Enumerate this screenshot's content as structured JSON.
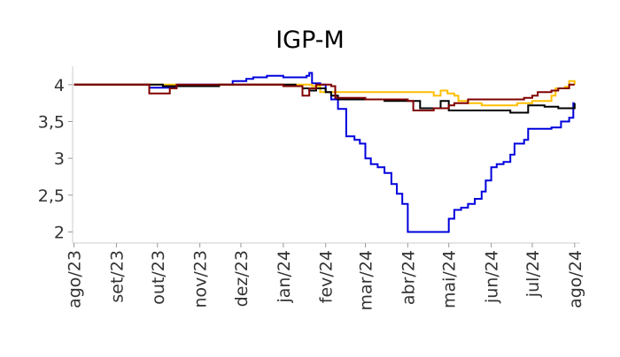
{
  "chart_data": {
    "type": "line",
    "title": "IGP-M",
    "xlabel": "",
    "ylabel": "",
    "ylim": [
      1.85,
      4.25
    ],
    "y_ticks": [
      2,
      2.5,
      3,
      3.5,
      4
    ],
    "y_tick_labels": [
      "2",
      "2,5",
      "3",
      "3,5",
      "4"
    ],
    "x_range": [
      "2023-07-31",
      "2024-08-05"
    ],
    "x_ticks": [
      {
        "date": "2023-08-01",
        "label": "ago/23"
      },
      {
        "date": "2023-09-01",
        "label": "set/23"
      },
      {
        "date": "2023-10-01",
        "label": "out/23"
      },
      {
        "date": "2023-11-01",
        "label": "nov/23"
      },
      {
        "date": "2023-12-01",
        "label": "dez/23"
      },
      {
        "date": "2024-01-01",
        "label": "jan/24"
      },
      {
        "date": "2024-02-01",
        "label": "fev/24"
      },
      {
        "date": "2024-03-01",
        "label": "mar/24"
      },
      {
        "date": "2024-04-01",
        "label": "abr/24"
      },
      {
        "date": "2024-05-01",
        "label": "mai/24"
      },
      {
        "date": "2024-06-01",
        "label": "jun/24"
      },
      {
        "date": "2024-07-01",
        "label": "jul/24"
      },
      {
        "date": "2024-08-01",
        "label": "ago/24"
      }
    ],
    "grid": false,
    "legend": "none",
    "series": [
      {
        "color": "#0000dd",
        "points": [
          [
            "2023-08-01",
            4.0
          ],
          [
            "2023-09-20",
            4.0
          ],
          [
            "2023-09-25",
            3.96
          ],
          [
            "2023-10-10",
            3.96
          ],
          [
            "2023-10-15",
            4.0
          ],
          [
            "2023-11-20",
            4.0
          ],
          [
            "2023-11-25",
            4.05
          ],
          [
            "2023-12-05",
            4.08
          ],
          [
            "2023-12-10",
            4.1
          ],
          [
            "2023-12-20",
            4.12
          ],
          [
            "2024-01-01",
            4.1
          ],
          [
            "2024-01-10",
            4.1
          ],
          [
            "2024-01-18",
            4.12
          ],
          [
            "2024-01-20",
            4.16
          ],
          [
            "2024-01-22",
            4.02
          ],
          [
            "2024-01-28",
            4.0
          ],
          [
            "2024-02-01",
            3.9
          ],
          [
            "2024-02-05",
            3.8
          ],
          [
            "2024-02-10",
            3.67
          ],
          [
            "2024-02-15",
            3.67
          ],
          [
            "2024-02-16",
            3.3
          ],
          [
            "2024-02-22",
            3.25
          ],
          [
            "2024-02-26",
            3.2
          ],
          [
            "2024-03-01",
            3.0
          ],
          [
            "2024-03-05",
            2.92
          ],
          [
            "2024-03-10",
            2.88
          ],
          [
            "2024-03-15",
            2.8
          ],
          [
            "2024-03-20",
            2.65
          ],
          [
            "2024-03-24",
            2.52
          ],
          [
            "2024-03-28",
            2.38
          ],
          [
            "2024-04-01",
            2.0
          ],
          [
            "2024-04-15",
            2.0
          ],
          [
            "2024-04-29",
            2.0
          ],
          [
            "2024-05-01",
            2.18
          ],
          [
            "2024-05-05",
            2.3
          ],
          [
            "2024-05-10",
            2.33
          ],
          [
            "2024-05-15",
            2.38
          ],
          [
            "2024-05-20",
            2.45
          ],
          [
            "2024-05-25",
            2.55
          ],
          [
            "2024-05-28",
            2.7
          ],
          [
            "2024-06-01",
            2.88
          ],
          [
            "2024-06-05",
            2.92
          ],
          [
            "2024-06-10",
            2.95
          ],
          [
            "2024-06-15",
            3.05
          ],
          [
            "2024-06-18",
            3.2
          ],
          [
            "2024-06-25",
            3.25
          ],
          [
            "2024-06-28",
            3.4
          ],
          [
            "2024-07-05",
            3.4
          ],
          [
            "2024-07-15",
            3.42
          ],
          [
            "2024-07-22",
            3.5
          ],
          [
            "2024-07-28",
            3.55
          ],
          [
            "2024-07-31",
            3.75
          ],
          [
            "2024-08-01",
            3.75
          ]
        ]
      },
      {
        "color": "#ffbf00",
        "points": [
          [
            "2023-08-01",
            4.0
          ],
          [
            "2023-09-25",
            4.0
          ],
          [
            "2023-10-01",
            4.0
          ],
          [
            "2023-10-15",
            3.98
          ],
          [
            "2023-11-15",
            4.0
          ],
          [
            "2024-01-01",
            4.0
          ],
          [
            "2024-01-22",
            3.98
          ],
          [
            "2024-01-28",
            3.9
          ],
          [
            "2024-03-15",
            3.9
          ],
          [
            "2024-04-10",
            3.9
          ],
          [
            "2024-04-18",
            3.9
          ],
          [
            "2024-04-20",
            3.85
          ],
          [
            "2024-04-25",
            3.92
          ],
          [
            "2024-04-30",
            3.88
          ],
          [
            "2024-05-05",
            3.85
          ],
          [
            "2024-05-08",
            3.78
          ],
          [
            "2024-05-15",
            3.75
          ],
          [
            "2024-05-25",
            3.72
          ],
          [
            "2024-06-10",
            3.72
          ],
          [
            "2024-06-20",
            3.75
          ],
          [
            "2024-07-01",
            3.78
          ],
          [
            "2024-07-15",
            3.85
          ],
          [
            "2024-07-18",
            3.95
          ],
          [
            "2024-07-25",
            3.97
          ],
          [
            "2024-07-28",
            4.05
          ],
          [
            "2024-08-01",
            4.0
          ]
        ]
      },
      {
        "color": "#000000",
        "points": [
          [
            "2023-08-01",
            4.0
          ],
          [
            "2023-09-25",
            4.0
          ],
          [
            "2023-10-05",
            3.98
          ],
          [
            "2023-11-15",
            4.0
          ],
          [
            "2024-01-01",
            4.0
          ],
          [
            "2024-01-10",
            3.98
          ],
          [
            "2024-01-15",
            3.95
          ],
          [
            "2024-01-20",
            3.92
          ],
          [
            "2024-01-25",
            3.95
          ],
          [
            "2024-02-01",
            3.9
          ],
          [
            "2024-02-05",
            3.85
          ],
          [
            "2024-02-10",
            3.8
          ],
          [
            "2024-03-01",
            3.8
          ],
          [
            "2024-03-15",
            3.78
          ],
          [
            "2024-04-01",
            3.78
          ],
          [
            "2024-04-10",
            3.68
          ],
          [
            "2024-04-20",
            3.68
          ],
          [
            "2024-04-25",
            3.78
          ],
          [
            "2024-05-01",
            3.65
          ],
          [
            "2024-05-15",
            3.65
          ],
          [
            "2024-06-01",
            3.65
          ],
          [
            "2024-06-15",
            3.62
          ],
          [
            "2024-06-28",
            3.72
          ],
          [
            "2024-07-10",
            3.7
          ],
          [
            "2024-07-20",
            3.68
          ],
          [
            "2024-08-01",
            3.75
          ]
        ]
      },
      {
        "color": "#800000",
        "points": [
          [
            "2023-08-01",
            4.0
          ],
          [
            "2023-09-20",
            4.0
          ],
          [
            "2023-09-25",
            3.88
          ],
          [
            "2023-10-05",
            3.88
          ],
          [
            "2023-10-10",
            3.95
          ],
          [
            "2023-10-15",
            4.0
          ],
          [
            "2023-11-15",
            4.0
          ],
          [
            "2024-01-01",
            3.98
          ],
          [
            "2024-01-12",
            3.98
          ],
          [
            "2024-01-15",
            3.85
          ],
          [
            "2024-01-20",
            3.95
          ],
          [
            "2024-01-25",
            4.0
          ],
          [
            "2024-02-01",
            4.0
          ],
          [
            "2024-02-05",
            3.98
          ],
          [
            "2024-02-08",
            3.82
          ],
          [
            "2024-03-01",
            3.8
          ],
          [
            "2024-03-25",
            3.8
          ],
          [
            "2024-04-01",
            3.78
          ],
          [
            "2024-04-05",
            3.65
          ],
          [
            "2024-04-20",
            3.68
          ],
          [
            "2024-05-01",
            3.72
          ],
          [
            "2024-05-05",
            3.75
          ],
          [
            "2024-05-15",
            3.8
          ],
          [
            "2024-06-01",
            3.8
          ],
          [
            "2024-06-25",
            3.82
          ],
          [
            "2024-07-01",
            3.85
          ],
          [
            "2024-07-05",
            3.9
          ],
          [
            "2024-07-15",
            3.92
          ],
          [
            "2024-07-20",
            3.95
          ],
          [
            "2024-07-28",
            4.0
          ],
          [
            "2024-08-01",
            4.0
          ]
        ]
      }
    ]
  }
}
